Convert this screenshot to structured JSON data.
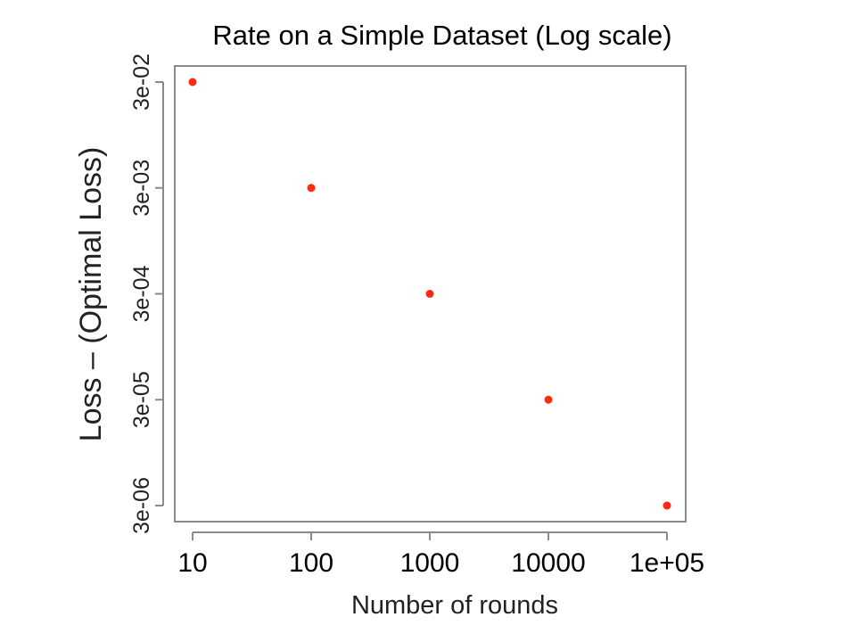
{
  "chart_data": {
    "type": "scatter",
    "title": "Rate on a Simple Dataset (Log scale)",
    "xlabel": "Number of rounds",
    "ylabel": "Loss – (Optimal Loss)",
    "x_scale": "log",
    "y_scale": "log",
    "x_ticks": [
      10,
      100,
      1000,
      10000,
      100000
    ],
    "x_tick_labels": [
      "10",
      "100",
      "1000",
      "10000",
      "1e+05"
    ],
    "y_ticks": [
      3e-06,
      3e-05,
      0.0003,
      0.003,
      0.03
    ],
    "y_tick_labels": [
      "3e-06",
      "3e-05",
      "3e-04",
      "3e-03",
      "3e-02"
    ],
    "series": [
      {
        "x": [
          10,
          100,
          1000,
          10000,
          100000
        ],
        "y": [
          0.03,
          0.003,
          0.0003,
          3e-05,
          3e-06
        ],
        "color": "#ff2a10"
      }
    ],
    "grid": false,
    "legend": "none"
  }
}
